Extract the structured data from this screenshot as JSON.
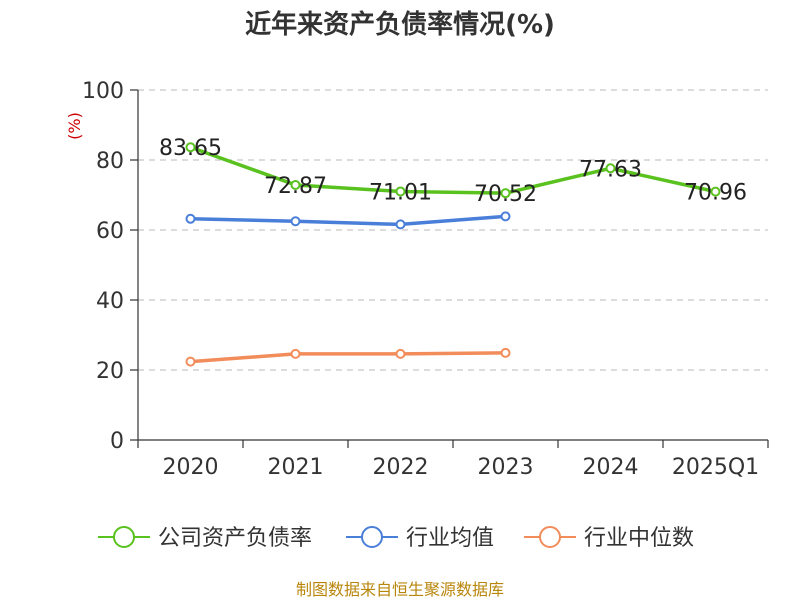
{
  "chart_data": {
    "type": "line",
    "title": "近年来资产负债率情况(%)",
    "unit_label": "(%)",
    "categories": [
      "2020",
      "2021",
      "2022",
      "2023",
      "2024",
      "2025Q1"
    ],
    "ylim": [
      0,
      100
    ],
    "yticks": [
      "0",
      "20",
      "40",
      "60",
      "80",
      "100"
    ],
    "grid": true,
    "legend_position": "bottom",
    "series": [
      {
        "name": "公司资产负债率",
        "color": "#5ac21f",
        "values": [
          83.65,
          72.87,
          71.01,
          70.52,
          77.63,
          70.96
        ],
        "labels": [
          "83.65",
          "72.87",
          "71.01",
          "70.52",
          "77.63",
          "70.96"
        ]
      },
      {
        "name": "行业均值",
        "color": "#4a7fd9",
        "values": [
          63.2,
          62.5,
          61.6,
          63.9,
          null,
          null
        ]
      },
      {
        "name": "行业中位数",
        "color": "#f28c5a",
        "values": [
          22.4,
          24.6,
          24.6,
          24.9,
          null,
          null
        ]
      }
    ]
  },
  "footer": "制图数据来自恒生聚源数据库"
}
